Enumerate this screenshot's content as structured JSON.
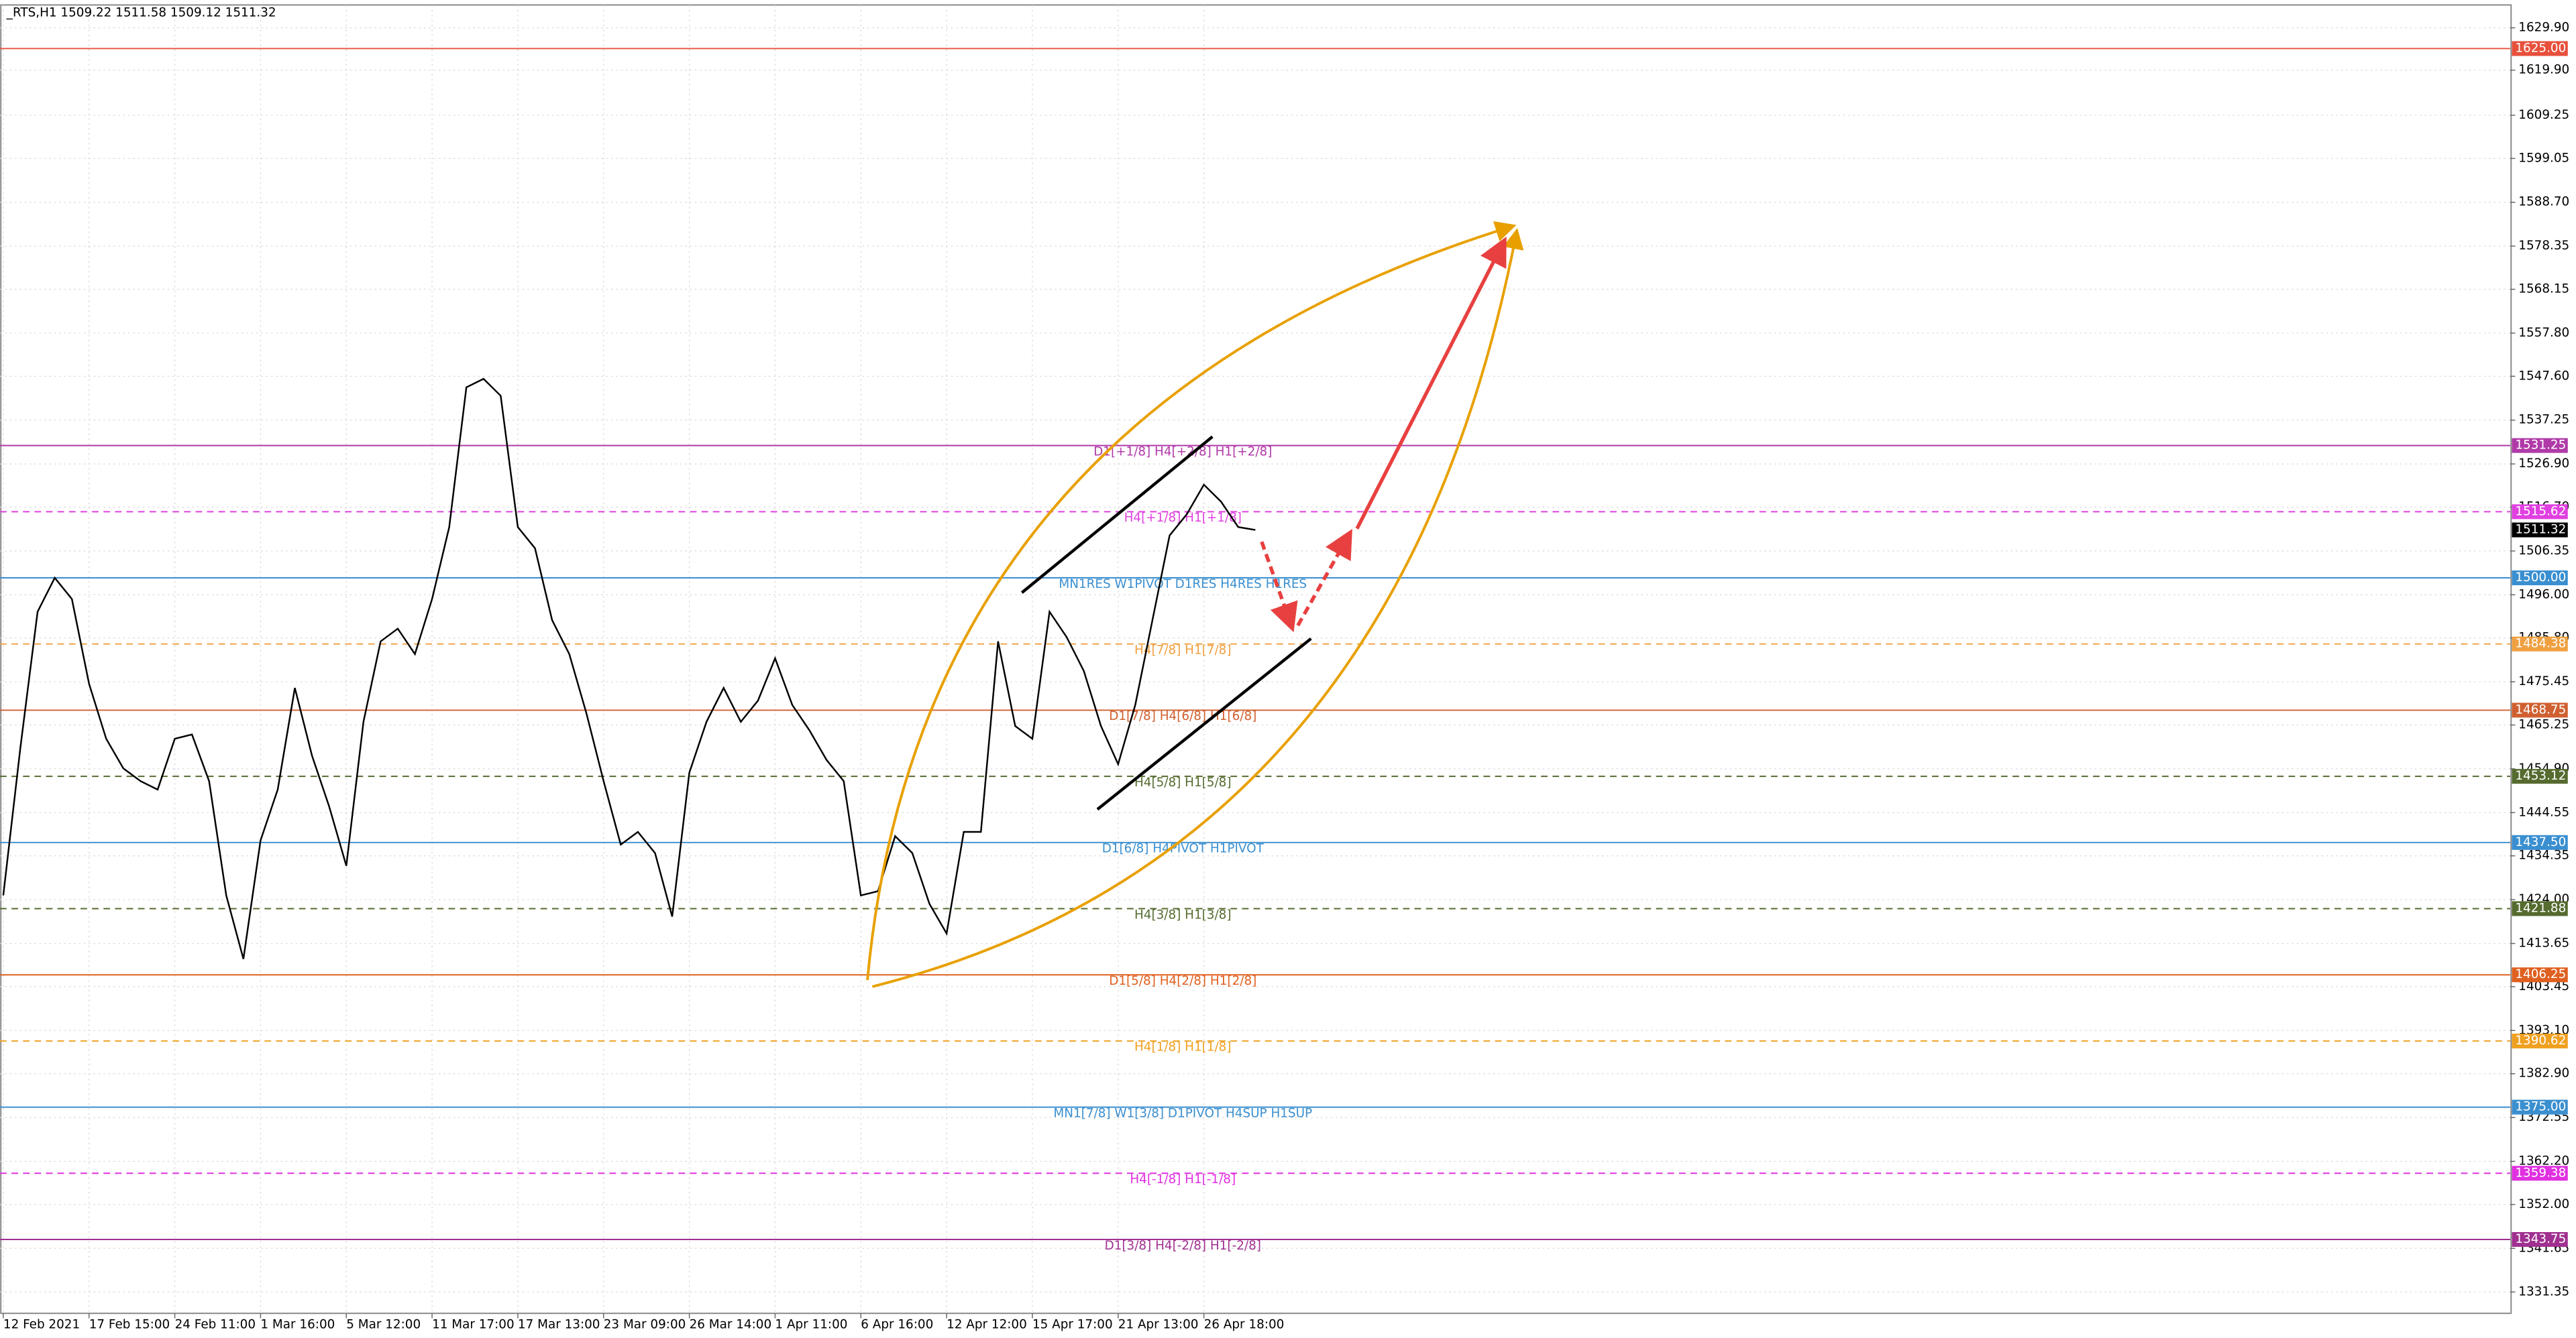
{
  "chart_data": {
    "type": "line",
    "title": "_RTS,H1  1509.22 1511.58 1509.12 1511.32",
    "categories": [
      "12 Feb 2021",
      null,
      null,
      null,
      null,
      "17 Feb 15:00",
      null,
      null,
      null,
      null,
      "24 Feb 11:00",
      null,
      null,
      null,
      null,
      "1 Mar 16:00",
      null,
      null,
      null,
      null,
      "5 Mar 12:00",
      null,
      null,
      null,
      null,
      "11 Mar 17:00",
      null,
      null,
      null,
      null,
      "17 Mar 13:00",
      null,
      null,
      null,
      null,
      "23 Mar 09:00",
      null,
      null,
      null,
      null,
      "26 Mar 14:00",
      null,
      null,
      null,
      null,
      "1 Apr 11:00",
      null,
      null,
      null,
      null,
      "6 Apr 16:00",
      null,
      null,
      null,
      null,
      "12 Apr 12:00",
      null,
      null,
      null,
      null,
      "15 Apr 17:00",
      null,
      null,
      null,
      null,
      "21 Apr 13:00",
      null,
      null,
      null,
      null,
      "26 Apr 18:00",
      null,
      null,
      null
    ],
    "values": [
      1425,
      1460,
      1492,
      1500,
      1495,
      1475,
      1462,
      1455,
      1452,
      1450,
      1462,
      1463,
      1452,
      1425,
      1410,
      1438,
      1450,
      1474,
      1458,
      1446,
      1432,
      1466,
      1485,
      1488,
      1482,
      1495,
      1512,
      1545,
      1547,
      1543,
      1512,
      1507,
      1490,
      1482,
      1468,
      1452,
      1437,
      1440,
      1435,
      1420,
      1454,
      1466,
      1474,
      1466,
      1471,
      1481,
      1470,
      1464,
      1457,
      1452,
      1425,
      1426,
      1439,
      1435,
      1423,
      1416,
      1440,
      1440,
      1485,
      1465,
      1462,
      1492,
      1486,
      1478,
      1465,
      1456,
      1470,
      1490,
      1510,
      1515,
      1522,
      1518,
      1512,
      1511.32
    ],
    "color": "#000000",
    "ylim": [
      1326.3,
      1635.3
    ],
    "yticks": [
      {
        "value": 1629.9,
        "label": "1629.90"
      },
      {
        "value": 1619.9,
        "label": "1619.90"
      },
      {
        "value": 1609.25,
        "label": "1609.25"
      },
      {
        "value": 1599.05,
        "label": "1599.05"
      },
      {
        "value": 1588.7,
        "label": "1588.70"
      },
      {
        "value": 1578.35,
        "label": "1578.35"
      },
      {
        "value": 1568.15,
        "label": "1568.15"
      },
      {
        "value": 1557.8,
        "label": "1557.80"
      },
      {
        "value": 1547.6,
        "label": "1547.60"
      },
      {
        "value": 1537.25,
        "label": "1537.25"
      },
      {
        "value": 1526.9,
        "label": "1526.90"
      },
      {
        "value": 1516.7,
        "label": "1516.70"
      },
      {
        "value": 1506.35,
        "label": "1506.35"
      },
      {
        "value": 1496,
        "label": "1496.00"
      },
      {
        "value": 1485.8,
        "label": "1485.80"
      },
      {
        "value": 1475.45,
        "label": "1475.45"
      },
      {
        "value": 1465.25,
        "label": "1465.25"
      },
      {
        "value": 1454.9,
        "label": "1454.90"
      },
      {
        "value": 1444.55,
        "label": "1444.55"
      },
      {
        "value": 1434.35,
        "label": "1434.35"
      },
      {
        "value": 1424,
        "label": "1424.00"
      },
      {
        "value": 1413.65,
        "label": "1413.65"
      },
      {
        "value": 1403.45,
        "label": "1403.45"
      },
      {
        "value": 1393.1,
        "label": "1393.10"
      },
      {
        "value": 1382.9,
        "label": "1382.90"
      },
      {
        "value": 1372.55,
        "label": "1372.55"
      },
      {
        "value": 1362.2,
        "label": "1362.20"
      },
      {
        "value": 1352,
        "label": "1352.00"
      },
      {
        "value": 1341.65,
        "label": "1341.65"
      },
      {
        "value": 1331.35,
        "label": "1331.35"
      }
    ],
    "grid": true,
    "levels": [
      {
        "value": 1625,
        "label": "1625.00",
        "color": "#e8503c",
        "dashed": false
      },
      {
        "value": 1531.25,
        "label": "1531.25",
        "color": "#b03aa8",
        "dashed": false,
        "text": "D1[+1/8] H4[+2/8] H1[+2/8]"
      },
      {
        "value": 1515.62,
        "label": "1515.62",
        "color": "#e040e0",
        "dashed": true,
        "text": "H4[+1/8] H1[+1/8]"
      },
      {
        "value": 1500,
        "label": "1500.00",
        "color": "#3a8fd0",
        "dashed": false,
        "text": "MN1RES W1PIVOT D1RES H4RES H1RES"
      },
      {
        "value": 1484.38,
        "label": "1484.38",
        "color": "#f0a040",
        "dashed": true,
        "text": "H4[7/8] H1[7/8]"
      },
      {
        "value": 1468.75,
        "label": "1468.75",
        "color": "#d06030",
        "dashed": false,
        "text": "D1[7/8] H4[6/8] H1[6/8]"
      },
      {
        "value": 1453.12,
        "label": "1453.12",
        "color": "#556b2f",
        "dashed": true,
        "text": "H4[5/8] H1[5/8]"
      },
      {
        "value": 1437.5,
        "label": "1437.50",
        "color": "#3a8fd0",
        "dashed": false,
        "text": "D1[6/8] H4PIVOT H1PIVOT"
      },
      {
        "value": 1421.88,
        "label": "1421.88",
        "color": "#556b2f",
        "dashed": true,
        "text": "H4[3/8] H1[3/8]"
      },
      {
        "value": 1406.25,
        "label": "1406.25",
        "color": "#e06020",
        "dashed": false,
        "text": "D1[5/8] H4[2/8] H1[2/8]"
      },
      {
        "value": 1390.62,
        "label": "1390.62",
        "color": "#f0a020",
        "dashed": true,
        "text": "H4[1/8] H1[1/8]"
      },
      {
        "value": 1375,
        "label": "1375.00",
        "color": "#3a8fd0",
        "dashed": false,
        "text": "MN1[7/8] W1[3/8] D1PIVOT H4SUP H1SUP"
      },
      {
        "value": 1359.38,
        "label": "1359.38",
        "color": "#e030e0",
        "dashed": true,
        "text": "H4[-1/8] H1[-1/8]"
      },
      {
        "value": 1343.75,
        "label": "1343.75",
        "color": "#a03090",
        "dashed": false,
        "text": "D1[3/8] H4[-2/8] H1[-2/8]"
      }
    ],
    "last_price": {
      "value": 1511.32,
      "label": "1511.32",
      "color": "#000000"
    }
  }
}
